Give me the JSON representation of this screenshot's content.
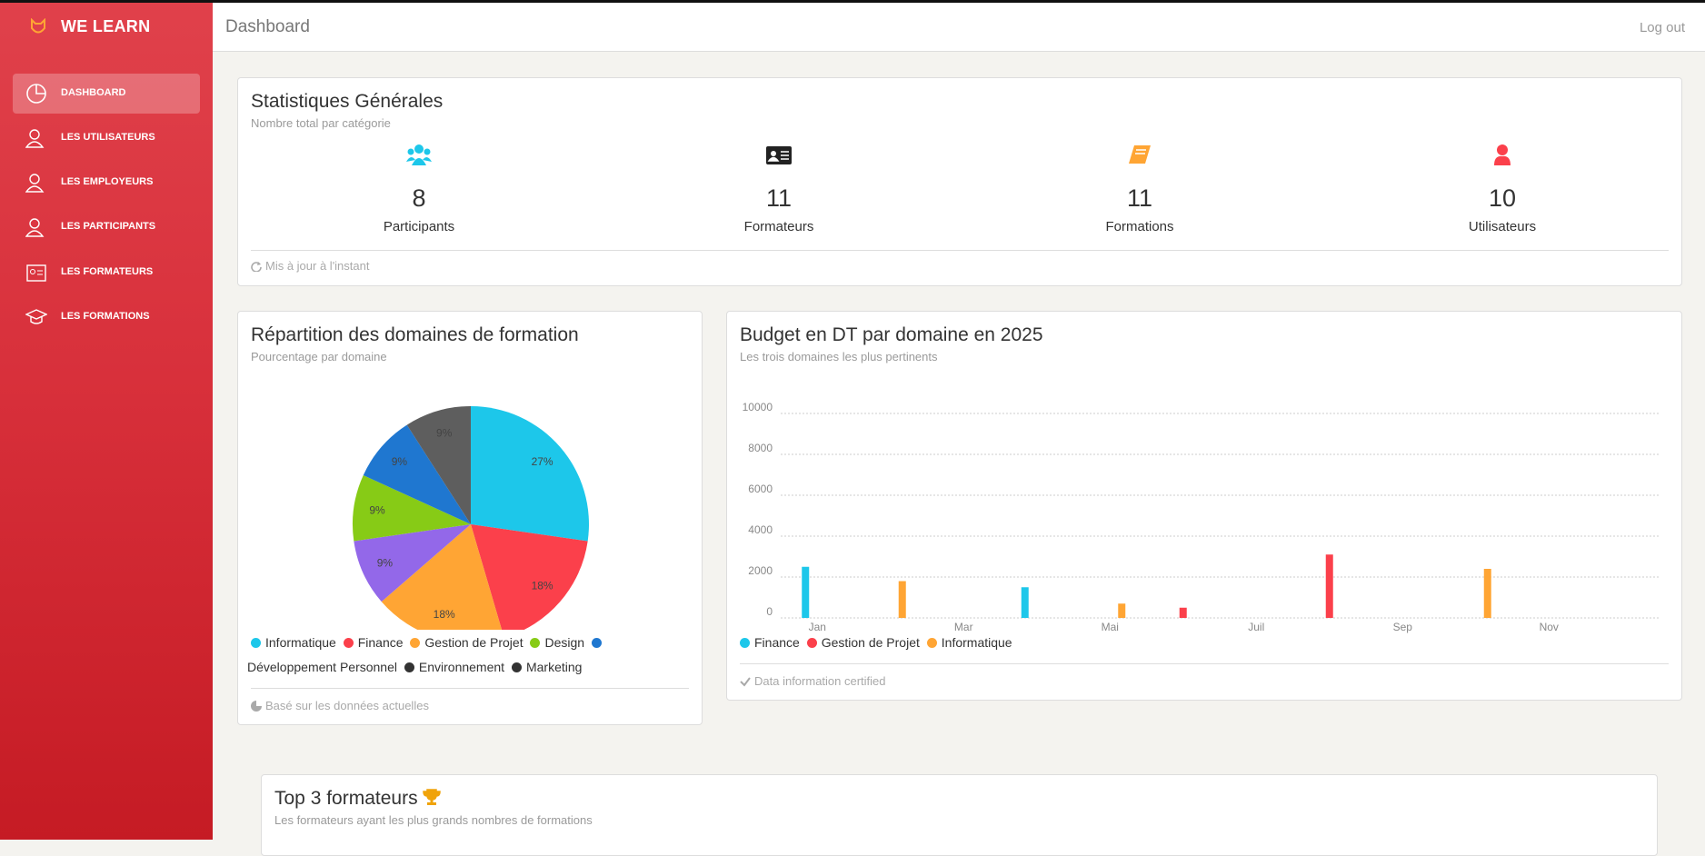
{
  "sidebar": {
    "brand": "WE LEARN",
    "menu": [
      "DASHBOARD",
      "LES UTILISATEURS",
      "LES EMPLOYEURS",
      "LES PARTICIPANTS",
      "LES FORMATEURS",
      "LES FORMATIONS"
    ]
  },
  "header": {
    "title": "Dashboard",
    "logout": "Log out"
  },
  "stats": {
    "title": "Statistiques Générales",
    "subtitle": "Nombre total par catégorie",
    "items": [
      {
        "value": 8,
        "label": "Participants"
      },
      {
        "value": 11,
        "label": "Formateurs"
      },
      {
        "value": 11,
        "label": "Formations"
      },
      {
        "value": 10,
        "label": "Utilisateurs"
      }
    ],
    "footer": "Mis à jour à l'instant"
  },
  "chart_data": [
    {
      "type": "pie",
      "title": "Répartition des domaines de formation",
      "subtitle": "Pourcentage par domaine",
      "categories": [
        "Informatique",
        "Finance",
        "Gestion de Projet",
        "Design",
        "Développement Personnel",
        "Environnement",
        "Marketing"
      ],
      "values": [
        27,
        18,
        18,
        9,
        9,
        9,
        9
      ],
      "value_labels": [
        "27%",
        "18%",
        "18%",
        "9%",
        "9%",
        "9%",
        "9%"
      ],
      "colors": [
        "#1dc7ea",
        "#fb404b",
        "#ffa534",
        "#9368e9",
        "#87cb16",
        "#1f77d0",
        "#5e5e5e"
      ],
      "legend_colors": [
        "#1dc7ea",
        "#fb404b",
        "#ffa534",
        "#87cb16",
        "#1f77d0",
        "#333333",
        "#333333"
      ],
      "footer": "Basé sur les données actuelles"
    },
    {
      "type": "bar",
      "title": "Budget en DT par domaine en 2025",
      "subtitle": "Les trois domaines les plus pertinents",
      "categories": [
        "Jan",
        null,
        "Mar",
        null,
        "Mai",
        null,
        "Juil",
        null,
        "Sep",
        null,
        "Nov",
        null
      ],
      "series": [
        {
          "name": "Finance",
          "color": "#1dc7ea",
          "values": [
            2500,
            null,
            null,
            1500,
            null,
            null,
            null,
            null,
            null,
            null,
            null,
            null
          ]
        },
        {
          "name": "Gestion de Projet",
          "color": "#fb404b",
          "values": [
            null,
            null,
            null,
            null,
            null,
            500,
            null,
            3100,
            null,
            null,
            null,
            null
          ]
        },
        {
          "name": "Informatique",
          "color": "#ffa534",
          "values": [
            null,
            1800,
            null,
            null,
            700,
            null,
            null,
            null,
            null,
            2400,
            null,
            null
          ]
        }
      ],
      "ylim": [
        0,
        10000
      ],
      "yticks": [
        0,
        2000,
        4000,
        6000,
        8000,
        10000
      ],
      "grid": true,
      "footer": "Data information certified"
    }
  ],
  "top_trainers": {
    "title": "Top 3 formateurs",
    "subtitle": "Les formateurs ayant les plus grands nombres de formations"
  }
}
